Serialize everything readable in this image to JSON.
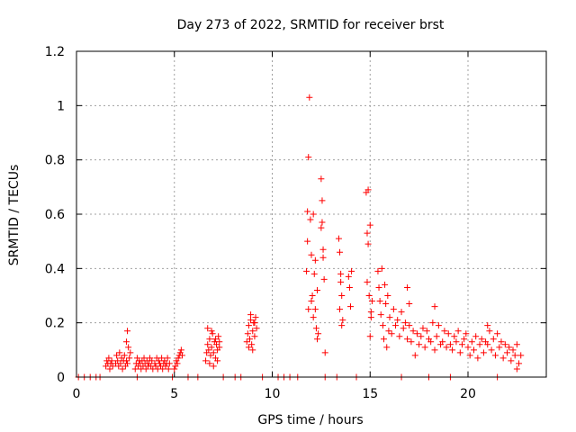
{
  "chart_data": {
    "type": "scatter",
    "title": "Day 273 of 2022, SRMTID for receiver brst",
    "xlabel": "GPS time / hours",
    "ylabel": "SRMTID / TECUs",
    "xlim": [
      0,
      24
    ],
    "ylim": [
      0,
      1.2
    ],
    "xticks": [
      0,
      5,
      10,
      15,
      20
    ],
    "yticks": [
      0,
      0.2,
      0.4,
      0.6,
      0.8,
      1,
      1.2
    ],
    "ytick_labels": [
      "0",
      "0.2",
      "0.4",
      "0.6",
      "0.8",
      "1",
      "1.2"
    ],
    "grid": true,
    "marker": "+",
    "color": "#ff0000",
    "series": [
      {
        "name": "SRMTID",
        "x": [
          0.1,
          0.4,
          0.7,
          1.0,
          1.2,
          1.5,
          1.55,
          1.6,
          1.65,
          1.7,
          1.75,
          1.8,
          1.85,
          2.0,
          2.05,
          2.1,
          2.15,
          2.2,
          2.25,
          2.3,
          2.35,
          2.4,
          2.45,
          2.5,
          2.55,
          2.6,
          2.65,
          2.7,
          2.55,
          2.6,
          2.75,
          3.0,
          3.05,
          3.1,
          3.15,
          3.2,
          3.25,
          3.3,
          3.35,
          3.4,
          3.45,
          3.5,
          3.55,
          3.6,
          3.65,
          3.7,
          3.75,
          3.8,
          3.85,
          3.9,
          4.0,
          4.05,
          4.1,
          4.15,
          4.2,
          4.25,
          4.3,
          4.35,
          4.4,
          4.45,
          4.5,
          4.55,
          4.6,
          4.65,
          4.7,
          4.75,
          5.0,
          5.05,
          5.1,
          5.15,
          5.2,
          5.25,
          5.3,
          5.35,
          5.4,
          6.6,
          6.65,
          6.7,
          6.75,
          6.8,
          6.85,
          6.9,
          6.95,
          7.0,
          7.05,
          7.1,
          7.15,
          7.2,
          7.25,
          7.3,
          6.7,
          6.8,
          6.9,
          7.0,
          7.1,
          7.2,
          7.3,
          8.7,
          8.75,
          8.8,
          8.85,
          8.9,
          8.95,
          9.0,
          9.05,
          9.1,
          9.15,
          9.2,
          8.8,
          8.9,
          9.0,
          9.1,
          11.75,
          11.8,
          11.85,
          11.9,
          11.95,
          12.0,
          12.05,
          12.1,
          12.15,
          12.2,
          12.25,
          12.3,
          12.35,
          11.8,
          11.85,
          12.0,
          12.1,
          12.2,
          12.3,
          12.5,
          12.55,
          12.6,
          12.65,
          12.7,
          12.5,
          12.55,
          12.6,
          13.4,
          13.45,
          13.5,
          13.55,
          13.6,
          13.45,
          13.5,
          13.55,
          13.9,
          13.95,
          14.0,
          14.05,
          14.8,
          14.85,
          14.9,
          14.95,
          15.0,
          15.05,
          15.1,
          14.85,
          14.9,
          15.0,
          15.05,
          15.4,
          15.45,
          15.5,
          15.55,
          15.6,
          15.65,
          15.7,
          15.75,
          15.8,
          15.85,
          15.9,
          15.95,
          16.0,
          16.1,
          16.2,
          16.3,
          16.4,
          16.5,
          16.6,
          16.7,
          16.8,
          16.9,
          17.0,
          17.1,
          17.2,
          17.3,
          17.4,
          17.5,
          17.6,
          17.7,
          17.8,
          17.9,
          18.0,
          18.1,
          18.2,
          18.3,
          18.4,
          18.5,
          18.6,
          18.7,
          18.8,
          18.9,
          19.0,
          19.1,
          19.2,
          19.3,
          19.4,
          19.5,
          19.6,
          19.7,
          19.8,
          19.9,
          20.0,
          20.1,
          20.2,
          20.3,
          20.4,
          20.5,
          20.6,
          20.7,
          20.8,
          20.9,
          21.0,
          21.1,
          21.2,
          21.3,
          21.4,
          21.5,
          21.6,
          21.7,
          21.8,
          21.9,
          22.0,
          22.1,
          22.2,
          22.3,
          22.4,
          22.5,
          22.6,
          22.7,
          16.9,
          17.0,
          18.3,
          21.0,
          22.5,
          3.1,
          4.9,
          5.7,
          6.2,
          7.5,
          8.1,
          8.4,
          9.5,
          10.3,
          10.6,
          10.9,
          11.3,
          12.7,
          13.3,
          14.3,
          16.6,
          18.0,
          19.1,
          21.5
        ],
        "y": [
          0.0,
          0.0,
          0.0,
          0.0,
          0.0,
          0.04,
          0.06,
          0.05,
          0.07,
          0.03,
          0.05,
          0.06,
          0.04,
          0.05,
          0.08,
          0.06,
          0.04,
          0.09,
          0.05,
          0.07,
          0.03,
          0.06,
          0.08,
          0.04,
          0.06,
          0.05,
          0.11,
          0.07,
          0.13,
          0.17,
          0.09,
          0.03,
          0.05,
          0.07,
          0.04,
          0.06,
          0.05,
          0.03,
          0.06,
          0.04,
          0.07,
          0.05,
          0.03,
          0.06,
          0.04,
          0.05,
          0.07,
          0.04,
          0.06,
          0.03,
          0.05,
          0.04,
          0.07,
          0.03,
          0.06,
          0.05,
          0.04,
          0.07,
          0.03,
          0.05,
          0.06,
          0.04,
          0.05,
          0.07,
          0.03,
          0.05,
          0.03,
          0.04,
          0.06,
          0.05,
          0.07,
          0.08,
          0.09,
          0.1,
          0.08,
          0.06,
          0.09,
          0.12,
          0.1,
          0.14,
          0.08,
          0.11,
          0.16,
          0.09,
          0.13,
          0.07,
          0.12,
          0.1,
          0.15,
          0.11,
          0.18,
          0.05,
          0.17,
          0.04,
          0.14,
          0.06,
          0.13,
          0.13,
          0.16,
          0.19,
          0.14,
          0.21,
          0.12,
          0.17,
          0.2,
          0.15,
          0.22,
          0.18,
          0.11,
          0.23,
          0.1,
          0.2,
          0.39,
          0.61,
          0.81,
          1.03,
          0.58,
          0.45,
          0.3,
          0.22,
          0.38,
          0.25,
          0.18,
          0.32,
          0.16,
          0.5,
          0.25,
          0.28,
          0.6,
          0.43,
          0.14,
          0.73,
          0.65,
          0.44,
          0.36,
          0.09,
          0.55,
          0.57,
          0.47,
          0.51,
          0.46,
          0.38,
          0.3,
          0.21,
          0.25,
          0.35,
          0.19,
          0.37,
          0.33,
          0.26,
          0.39,
          0.68,
          0.53,
          0.69,
          0.3,
          0.15,
          0.22,
          0.28,
          0.35,
          0.49,
          0.56,
          0.24,
          0.39,
          0.33,
          0.28,
          0.23,
          0.4,
          0.19,
          0.14,
          0.34,
          0.27,
          0.11,
          0.3,
          0.17,
          0.22,
          0.16,
          0.25,
          0.19,
          0.21,
          0.15,
          0.24,
          0.18,
          0.2,
          0.14,
          0.19,
          0.13,
          0.17,
          0.08,
          0.16,
          0.12,
          0.15,
          0.18,
          0.11,
          0.17,
          0.14,
          0.13,
          0.2,
          0.1,
          0.15,
          0.19,
          0.12,
          0.13,
          0.17,
          0.11,
          0.16,
          0.12,
          0.1,
          0.15,
          0.13,
          0.17,
          0.09,
          0.12,
          0.14,
          0.16,
          0.11,
          0.08,
          0.13,
          0.1,
          0.15,
          0.07,
          0.12,
          0.14,
          0.09,
          0.13,
          0.12,
          0.17,
          0.1,
          0.14,
          0.08,
          0.16,
          0.11,
          0.13,
          0.07,
          0.12,
          0.09,
          0.11,
          0.06,
          0.1,
          0.08,
          0.12,
          0.05,
          0.08,
          0.33,
          0.27,
          0.26,
          0.19,
          0.03,
          0.0,
          0.0,
          0.0,
          0.0,
          0.0,
          0.0,
          0.0,
          0.0,
          0.0,
          0.0,
          0.0,
          0.0,
          0.0,
          0.0,
          0.0,
          0.0,
          0.0,
          0.0,
          0.0
        ]
      }
    ]
  }
}
